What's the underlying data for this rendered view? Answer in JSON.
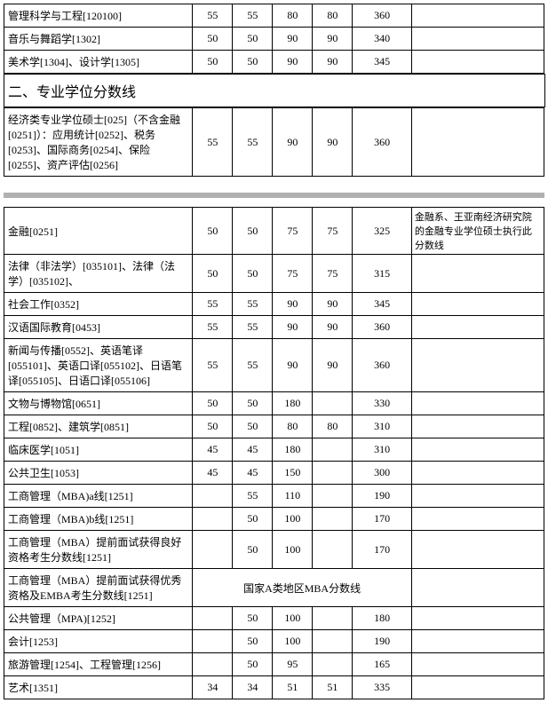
{
  "section_header": "二、专业学位分数线",
  "merged_text": "国家A类地区MBA分数线",
  "table1": [
    {
      "label": "管理科学与工程[120100]",
      "c1": "55",
      "c2": "55",
      "c3": "80",
      "c4": "80",
      "total": "360",
      "remark": ""
    },
    {
      "label": "音乐与舞蹈学[1302]",
      "c1": "50",
      "c2": "50",
      "c3": "90",
      "c4": "90",
      "total": "340",
      "remark": ""
    },
    {
      "label": "美术学[1304]、设计学[1305]",
      "c1": "50",
      "c2": "50",
      "c3": "90",
      "c4": "90",
      "total": "345",
      "remark": ""
    }
  ],
  "table1b": [
    {
      "label": "经济类专业学位硕士[025]（不含金融[0251]）：应用统计[0252]、税务[0253]、国际商务[0254]、保险[0255]、资产评估[0256]",
      "c1": "55",
      "c2": "55",
      "c3": "90",
      "c4": "90",
      "total": "360",
      "remark": ""
    }
  ],
  "table2": [
    {
      "label": "金融[0251]",
      "c1": "50",
      "c2": "50",
      "c3": "75",
      "c4": "75",
      "total": "325",
      "remark": "金融系、王亚南经济研究院的金融专业学位硕士执行此分数线"
    },
    {
      "label": "法律（非法学）[035101]、法律（法学）[035102]、",
      "c1": "50",
      "c2": "50",
      "c3": "75",
      "c4": "75",
      "total": "315",
      "remark": ""
    },
    {
      "label": "社会工作[0352]",
      "c1": "55",
      "c2": "55",
      "c3": "90",
      "c4": "90",
      "total": "345",
      "remark": ""
    },
    {
      "label": "汉语国际教育[0453]",
      "c1": "55",
      "c2": "55",
      "c3": "90",
      "c4": "90",
      "total": "360",
      "remark": ""
    },
    {
      "label": "新闻与传播[0552]、英语笔译[055101]、英语口译[055102]、日语笔译[055105]、日语口译[055106]",
      "c1": "55",
      "c2": "55",
      "c3": "90",
      "c4": "90",
      "total": "360",
      "remark": ""
    },
    {
      "label": "文物与博物馆[0651]",
      "c1": "50",
      "c2": "50",
      "c3": "180",
      "c4": "",
      "total": "330",
      "remark": ""
    },
    {
      "label": "工程[0852]、建筑学[0851]",
      "c1": "50",
      "c2": "50",
      "c3": "80",
      "c4": "80",
      "total": "310",
      "remark": ""
    },
    {
      "label": "临床医学[1051]",
      "c1": "45",
      "c2": "45",
      "c3": "180",
      "c4": "",
      "total": "310",
      "remark": ""
    },
    {
      "label": "公共卫生[1053]",
      "c1": "45",
      "c2": "45",
      "c3": "150",
      "c4": "",
      "total": "300",
      "remark": ""
    },
    {
      "label": "工商管理（MBA)a线[1251]",
      "c1": "",
      "c2": "55",
      "c3": "110",
      "c4": "",
      "total": "190",
      "remark": ""
    },
    {
      "label": "工商管理（MBA)b线[1251]",
      "c1": "",
      "c2": "50",
      "c3": "100",
      "c4": "",
      "total": "170",
      "remark": ""
    },
    {
      "label": "工商管理（MBA）提前面试获得良好资格考生分数线[1251]",
      "c1": "",
      "c2": "50",
      "c3": "100",
      "c4": "",
      "total": "170",
      "remark": ""
    },
    {
      "label": "工商管理（MBA）提前面试获得优秀资格及EMBA考生分数线[1251]",
      "merged": true
    },
    {
      "label": "公共管理（MPA)[1252]",
      "c1": "",
      "c2": "50",
      "c3": "100",
      "c4": "",
      "total": "180",
      "remark": ""
    },
    {
      "label": "会计[1253]",
      "c1": "",
      "c2": "50",
      "c3": "100",
      "c4": "",
      "total": "190",
      "remark": ""
    },
    {
      "label": "旅游管理[1254]、工程管理[1256]",
      "c1": "",
      "c2": "50",
      "c3": "95",
      "c4": "",
      "total": "165",
      "remark": ""
    },
    {
      "label": "艺术[1351]",
      "c1": "34",
      "c2": "34",
      "c3": "51",
      "c4": "51",
      "total": "335",
      "remark": ""
    }
  ]
}
